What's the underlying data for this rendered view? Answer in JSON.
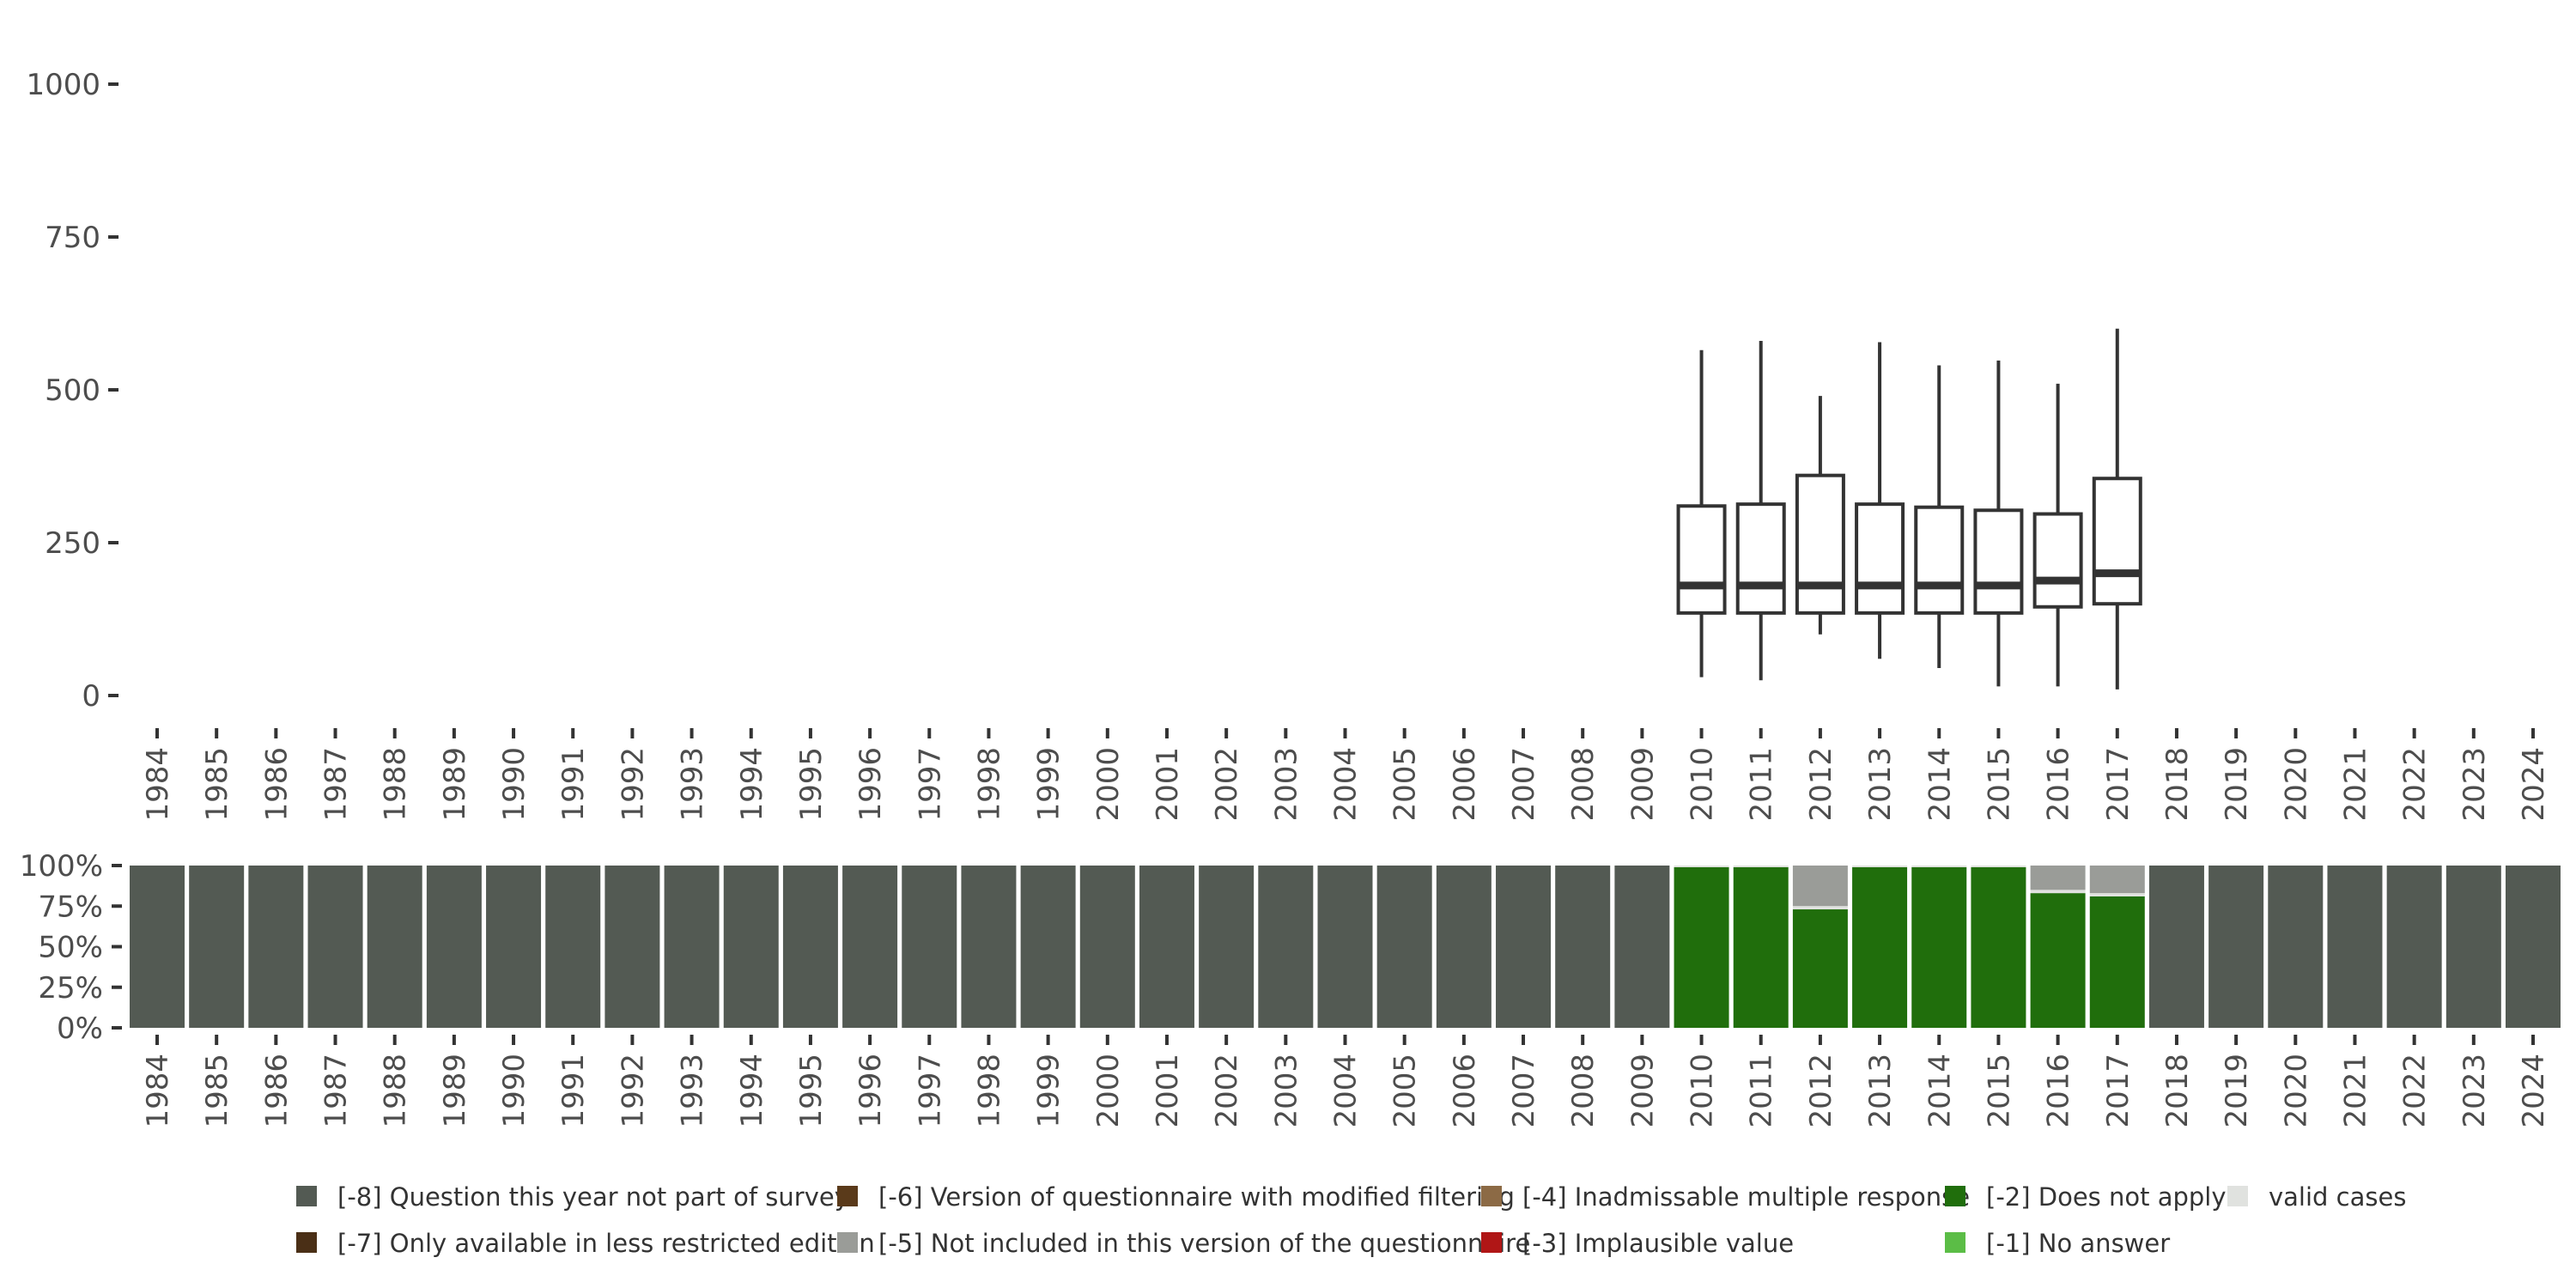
{
  "chart_data": [
    {
      "type": "boxplot",
      "title": "",
      "xlabel": "",
      "ylabel": "",
      "ylim": [
        0,
        1000
      ],
      "y_ticks": [
        "0",
        "250",
        "500",
        "750",
        "1000"
      ],
      "y_tick_values": [
        0,
        250,
        500,
        750,
        1000
      ],
      "categories": [
        "1984",
        "1985",
        "1986",
        "1987",
        "1988",
        "1989",
        "1990",
        "1991",
        "1992",
        "1993",
        "1994",
        "1995",
        "1996",
        "1997",
        "1998",
        "1999",
        "2000",
        "2001",
        "2002",
        "2003",
        "2004",
        "2005",
        "2006",
        "2007",
        "2008",
        "2009",
        "2010",
        "2011",
        "2012",
        "2013",
        "2014",
        "2015",
        "2016",
        "2017",
        "2018",
        "2019",
        "2020",
        "2021",
        "2022",
        "2023",
        "2024"
      ],
      "boxes": [
        {
          "year": "2010",
          "min": 30,
          "q1": 135,
          "median": 180,
          "q3": 310,
          "max": 565
        },
        {
          "year": "2011",
          "min": 25,
          "q1": 135,
          "median": 180,
          "q3": 313,
          "max": 580
        },
        {
          "year": "2012",
          "min": 100,
          "q1": 135,
          "median": 180,
          "q3": 360,
          "max": 490
        },
        {
          "year": "2013",
          "min": 60,
          "q1": 135,
          "median": 180,
          "q3": 313,
          "max": 578
        },
        {
          "year": "2014",
          "min": 45,
          "q1": 135,
          "median": 180,
          "q3": 308,
          "max": 540
        },
        {
          "year": "2015",
          "min": 15,
          "q1": 135,
          "median": 180,
          "q3": 303,
          "max": 548
        },
        {
          "year": "2016",
          "min": 15,
          "q1": 145,
          "median": 188,
          "q3": 297,
          "max": 510
        },
        {
          "year": "2017",
          "min": 10,
          "q1": 150,
          "median": 200,
          "q3": 355,
          "max": 600
        }
      ]
    },
    {
      "type": "stacked_bar",
      "ylim": [
        0,
        1
      ],
      "y_ticks": [
        "0%",
        "25%",
        "50%",
        "75%",
        "100%"
      ],
      "y_tick_values": [
        0,
        0.25,
        0.5,
        0.75,
        1
      ],
      "categories": [
        "1984",
        "1985",
        "1986",
        "1987",
        "1988",
        "1989",
        "1990",
        "1991",
        "1992",
        "1993",
        "1994",
        "1995",
        "1996",
        "1997",
        "1998",
        "1999",
        "2000",
        "2001",
        "2002",
        "2003",
        "2004",
        "2005",
        "2006",
        "2007",
        "2008",
        "2009",
        "2010",
        "2011",
        "2012",
        "2013",
        "2014",
        "2015",
        "2016",
        "2017",
        "2018",
        "2019",
        "2020",
        "2021",
        "2022",
        "2023",
        "2024"
      ],
      "series": [
        {
          "name": "[-8] Question this year not part of survey",
          "color": "#535a53",
          "values": [
            1,
            1,
            1,
            1,
            1,
            1,
            1,
            1,
            1,
            1,
            1,
            1,
            1,
            1,
            1,
            1,
            1,
            1,
            1,
            1,
            1,
            1,
            1,
            1,
            1,
            1,
            0,
            0,
            0,
            0,
            0,
            0,
            0,
            0,
            1,
            1,
            1,
            1,
            1,
            1,
            1
          ]
        },
        {
          "name": "[-2] Does not apply",
          "color": "#206e0c",
          "values": [
            0,
            0,
            0,
            0,
            0,
            0,
            0,
            0,
            0,
            0,
            0,
            0,
            0,
            0,
            0,
            0,
            0,
            0,
            0,
            0,
            0,
            0,
            0,
            0,
            0,
            0,
            0.99,
            0.99,
            0.73,
            0.99,
            0.99,
            0.99,
            0.83,
            0.81,
            0,
            0,
            0,
            0,
            0,
            0,
            0
          ]
        },
        {
          "name": "valid cases",
          "color": "#e0e2df",
          "values": [
            0,
            0,
            0,
            0,
            0,
            0,
            0,
            0,
            0,
            0,
            0,
            0,
            0,
            0,
            0,
            0,
            0,
            0,
            0,
            0,
            0,
            0,
            0,
            0,
            0,
            0,
            0.01,
            0.01,
            0.02,
            0.01,
            0.01,
            0.01,
            0.02,
            0.02,
            0,
            0,
            0,
            0,
            0,
            0,
            0
          ]
        },
        {
          "name": "[-5] Not included in this version of the questionnaire",
          "color": "#9a9c98",
          "values": [
            0,
            0,
            0,
            0,
            0,
            0,
            0,
            0,
            0,
            0,
            0,
            0,
            0,
            0,
            0,
            0,
            0,
            0,
            0,
            0,
            0,
            0,
            0,
            0,
            0,
            0,
            0,
            0,
            0.25,
            0,
            0,
            0,
            0.15,
            0.17,
            0,
            0,
            0,
            0,
            0,
            0,
            0
          ]
        }
      ]
    }
  ],
  "legend": {
    "items": [
      {
        "label": "[-8] Question this year not part of survey",
        "color": "#535a53"
      },
      {
        "label": "[-7] Only available in less restricted edition",
        "color": "#4a2f16"
      },
      {
        "label": "[-6] Version of questionnaire with modified filtering",
        "color": "#5a3a1a"
      },
      {
        "label": "[-5] Not included in this version of the questionnaire",
        "color": "#9a9c98"
      },
      {
        "label": "[-4] Inadmissable multiple response",
        "color": "#8c6a45"
      },
      {
        "label": "[-3] Implausible value",
        "color": "#b01616"
      },
      {
        "label": "[-2] Does not apply",
        "color": "#206e0c"
      },
      {
        "label": "[-1] No answer",
        "color": "#5bbd46"
      },
      {
        "label": "valid cases",
        "color": "#e0e2df"
      }
    ]
  }
}
